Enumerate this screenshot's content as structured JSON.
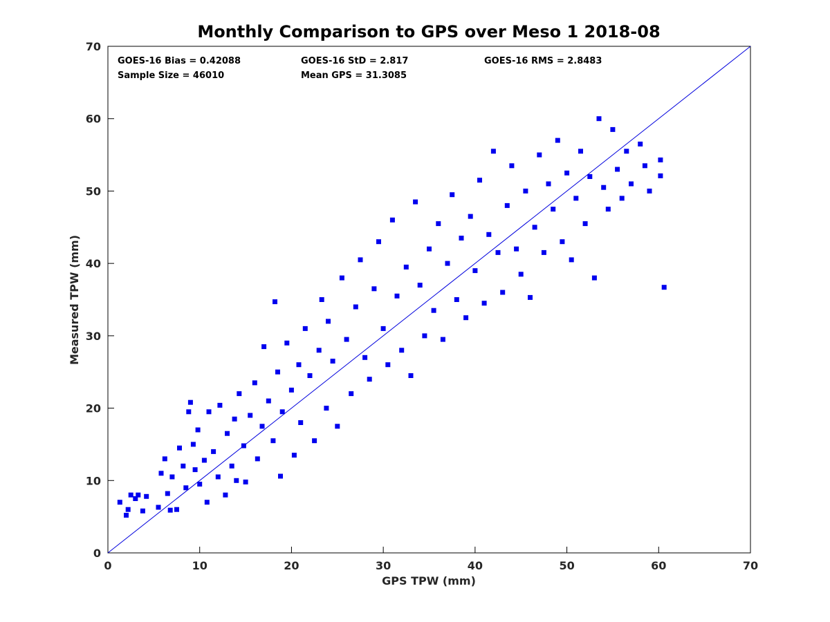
{
  "chart_data": {
    "type": "scatter",
    "title": "Monthly Comparison to GPS over Meso 1 2018-08",
    "xlabel": "GPS TPW (mm)",
    "ylabel": "Measured TPW (mm)",
    "xlim": [
      0,
      70
    ],
    "ylim": [
      0,
      70
    ],
    "xticks": [
      "0",
      "10",
      "20",
      "30",
      "40",
      "50",
      "60",
      "70"
    ],
    "yticks": [
      "0",
      "10",
      "20",
      "30",
      "40",
      "50",
      "60",
      "70"
    ],
    "grid": false,
    "reference_line": {
      "x": [
        0,
        70
      ],
      "y": [
        0,
        70
      ]
    },
    "marker_color": "#0000ee",
    "line_color": "#0000dd",
    "annotations": [
      "GOES-16 Bias = 0.42088",
      "GOES-16 StD = 2.817",
      "GOES-16 RMS = 2.8483",
      "Sample Size = 46010",
      "Mean GPS = 31.3085"
    ],
    "series": [
      {
        "points": [
          [
            1.3,
            7.0
          ],
          [
            2.0,
            5.2
          ],
          [
            2.2,
            6.0
          ],
          [
            2.5,
            8.0
          ],
          [
            3.0,
            7.5
          ],
          [
            3.3,
            8.0
          ],
          [
            3.8,
            5.8
          ],
          [
            4.2,
            7.8
          ],
          [
            5.5,
            6.3
          ],
          [
            5.8,
            11.0
          ],
          [
            6.2,
            13.0
          ],
          [
            6.5,
            8.2
          ],
          [
            6.8,
            5.9
          ],
          [
            7.0,
            10.5
          ],
          [
            7.5,
            6.0
          ],
          [
            7.8,
            14.5
          ],
          [
            8.2,
            12.0
          ],
          [
            8.5,
            9.0
          ],
          [
            8.8,
            19.5
          ],
          [
            9.0,
            20.8
          ],
          [
            9.3,
            15.0
          ],
          [
            9.5,
            11.5
          ],
          [
            9.8,
            17.0
          ],
          [
            10.0,
            9.5
          ],
          [
            10.5,
            12.8
          ],
          [
            10.8,
            7.0
          ],
          [
            11.0,
            19.5
          ],
          [
            11.5,
            14.0
          ],
          [
            12.0,
            10.5
          ],
          [
            12.2,
            20.4
          ],
          [
            12.8,
            8.0
          ],
          [
            13.0,
            16.5
          ],
          [
            13.5,
            12.0
          ],
          [
            13.8,
            18.5
          ],
          [
            14.0,
            10.0
          ],
          [
            14.3,
            22.0
          ],
          [
            14.8,
            14.8
          ],
          [
            15.0,
            9.8
          ],
          [
            15.5,
            19.0
          ],
          [
            16.0,
            23.5
          ],
          [
            16.3,
            13.0
          ],
          [
            16.8,
            17.5
          ],
          [
            17.0,
            28.5
          ],
          [
            17.5,
            21.0
          ],
          [
            18.0,
            15.5
          ],
          [
            18.2,
            34.7
          ],
          [
            18.5,
            25.0
          ],
          [
            18.8,
            10.6
          ],
          [
            19.0,
            19.5
          ],
          [
            19.5,
            29.0
          ],
          [
            20.0,
            22.5
          ],
          [
            20.3,
            13.5
          ],
          [
            20.8,
            26.0
          ],
          [
            21.0,
            18.0
          ],
          [
            21.5,
            31.0
          ],
          [
            22.0,
            24.5
          ],
          [
            22.5,
            15.5
          ],
          [
            23.0,
            28.0
          ],
          [
            23.3,
            35.0
          ],
          [
            23.8,
            20.0
          ],
          [
            24.0,
            32.0
          ],
          [
            24.5,
            26.5
          ],
          [
            25.0,
            17.5
          ],
          [
            25.5,
            38.0
          ],
          [
            26.0,
            29.5
          ],
          [
            26.5,
            22.0
          ],
          [
            27.0,
            34.0
          ],
          [
            27.5,
            40.5
          ],
          [
            28.0,
            27.0
          ],
          [
            28.5,
            24.0
          ],
          [
            29.0,
            36.5
          ],
          [
            29.5,
            43.0
          ],
          [
            30.0,
            31.0
          ],
          [
            30.5,
            26.0
          ],
          [
            31.0,
            46.0
          ],
          [
            31.5,
            35.5
          ],
          [
            32.0,
            28.0
          ],
          [
            32.5,
            39.5
          ],
          [
            33.0,
            24.5
          ],
          [
            33.5,
            48.5
          ],
          [
            34.0,
            37.0
          ],
          [
            34.5,
            30.0
          ],
          [
            35.0,
            42.0
          ],
          [
            35.5,
            33.5
          ],
          [
            36.0,
            45.5
          ],
          [
            36.5,
            29.5
          ],
          [
            37.0,
            40.0
          ],
          [
            37.5,
            49.5
          ],
          [
            38.0,
            35.0
          ],
          [
            38.5,
            43.5
          ],
          [
            39.0,
            32.5
          ],
          [
            39.5,
            46.5
          ],
          [
            40.0,
            39.0
          ],
          [
            40.5,
            51.5
          ],
          [
            41.0,
            34.5
          ],
          [
            41.5,
            44.0
          ],
          [
            42.0,
            55.5
          ],
          [
            42.5,
            41.5
          ],
          [
            43.0,
            36.0
          ],
          [
            43.5,
            48.0
          ],
          [
            44.0,
            53.5
          ],
          [
            44.5,
            42.0
          ],
          [
            45.0,
            38.5
          ],
          [
            45.5,
            50.0
          ],
          [
            46.0,
            35.3
          ],
          [
            46.5,
            45.0
          ],
          [
            47.0,
            55.0
          ],
          [
            47.5,
            41.5
          ],
          [
            48.0,
            51.0
          ],
          [
            48.5,
            47.5
          ],
          [
            49.0,
            57.0
          ],
          [
            49.5,
            43.0
          ],
          [
            50.0,
            52.5
          ],
          [
            50.5,
            40.5
          ],
          [
            51.0,
            49.0
          ],
          [
            51.5,
            55.5
          ],
          [
            52.0,
            45.5
          ],
          [
            52.5,
            52.0
          ],
          [
            53.0,
            38.0
          ],
          [
            53.5,
            60.0
          ],
          [
            54.0,
            50.5
          ],
          [
            54.5,
            47.5
          ],
          [
            55.0,
            58.5
          ],
          [
            55.5,
            53.0
          ],
          [
            56.0,
            49.0
          ],
          [
            56.5,
            55.5
          ],
          [
            57.0,
            51.0
          ],
          [
            58.0,
            56.5
          ],
          [
            58.5,
            53.5
          ],
          [
            59.0,
            50.0
          ],
          [
            60.2,
            54.3
          ],
          [
            60.2,
            52.1
          ],
          [
            60.6,
            36.7
          ]
        ]
      }
    ]
  }
}
